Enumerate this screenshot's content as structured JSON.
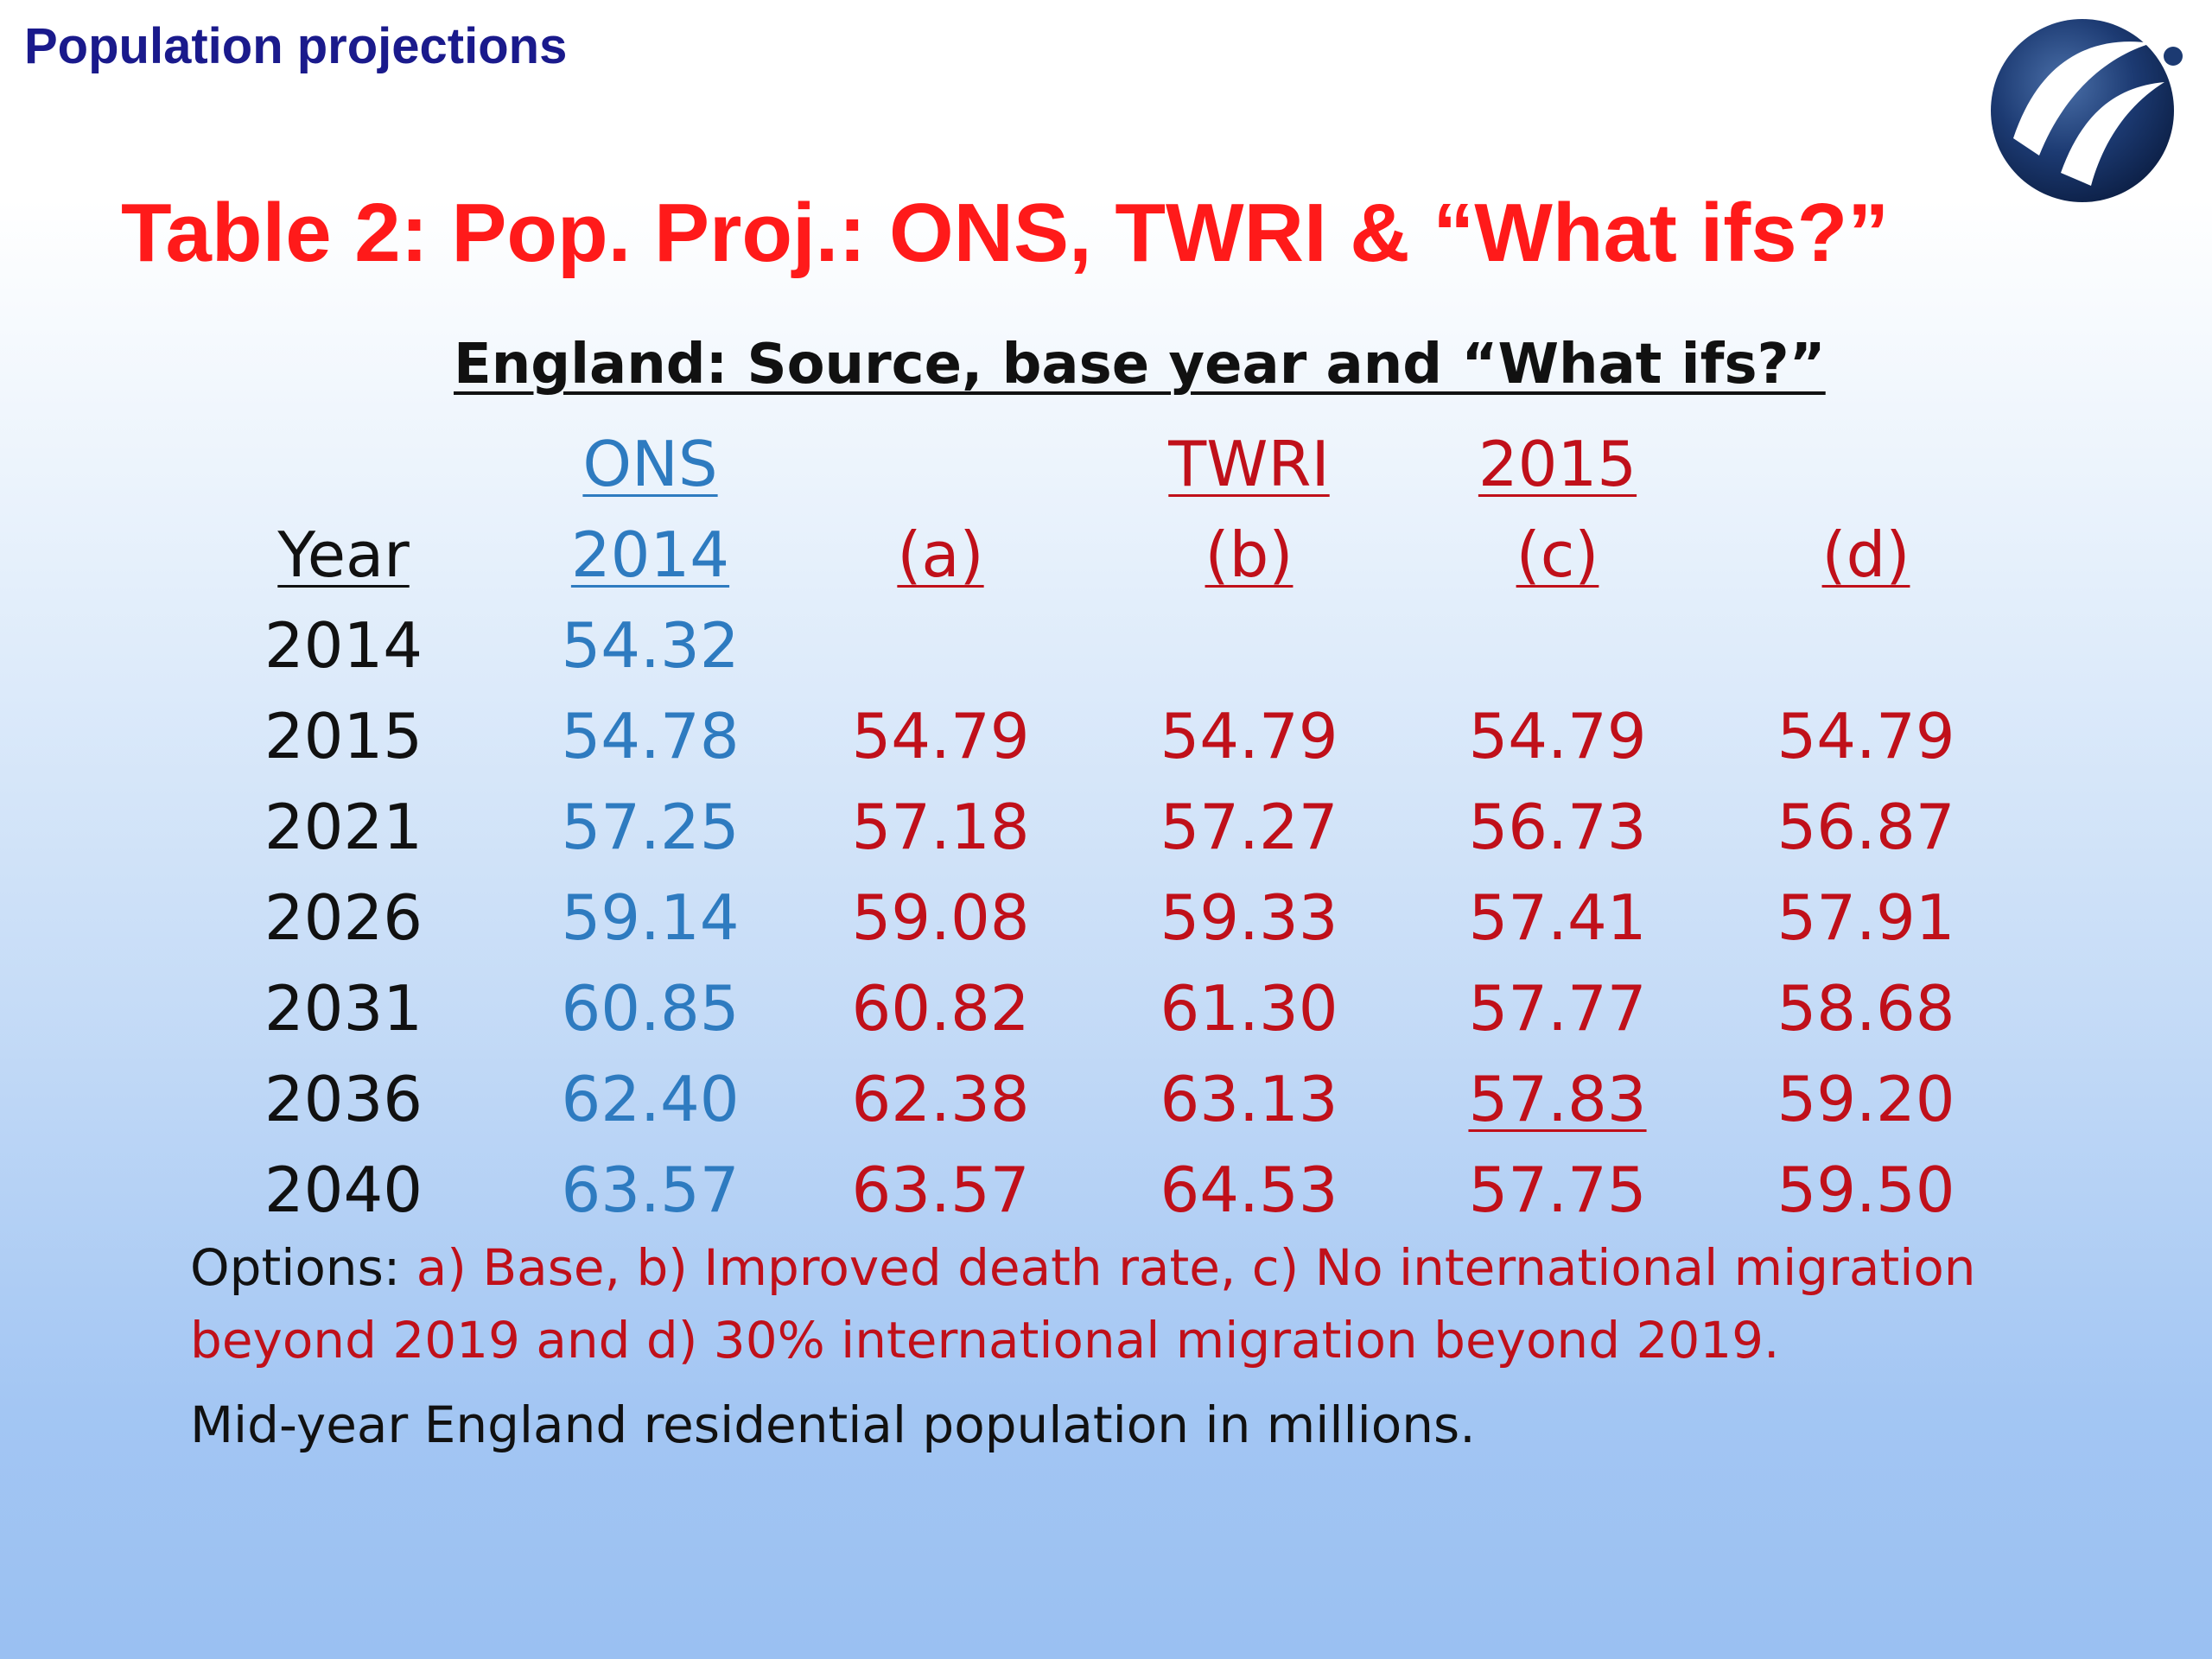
{
  "header": {
    "title": "Population projections"
  },
  "main_title": "Table 2: Pop. Proj.: ONS, TWRI & “What ifs?”",
  "subtitle": "England: Source, base year and “What ifs?”",
  "table": {
    "group_headers": {
      "ons": "ONS",
      "twri": "TWRI",
      "year2015": "2015"
    },
    "column_headers": [
      "Year",
      "2014",
      "(a)",
      "(b)",
      "(c)",
      "(d)"
    ],
    "rows": [
      [
        "2014",
        "54.32",
        "",
        "",
        "",
        ""
      ],
      [
        "2015",
        "54.78",
        "54.79",
        "54.79",
        "54.79",
        "54.79"
      ],
      [
        "2021",
        "57.25",
        "57.18",
        "57.27",
        "56.73",
        "56.87"
      ],
      [
        "2026",
        "59.14",
        "59.08",
        "59.33",
        "57.41",
        "57.91"
      ],
      [
        "2031",
        "60.85",
        "60.82",
        "61.30",
        "57.77",
        "58.68"
      ],
      [
        "2036",
        "62.40",
        "62.38",
        "63.13",
        "57.83",
        "59.20"
      ],
      [
        "2040",
        "63.57",
        "63.57",
        "64.53",
        "57.75",
        "59.50"
      ]
    ]
  },
  "options": {
    "label": "Options: ",
    "text": "a) Base, b) Improved death rate, c) No international migration beyond 2019 and d) 30% international migration beyond 2019."
  },
  "footnote": "Mid-year England residential population in millions.",
  "colors": {
    "header_blue": "#1a1a8c",
    "title_red": "#ff1a1a",
    "ons_blue": "#2e7bc0",
    "option_red": "#c0101a"
  },
  "icons": {
    "logo": "globe-logo-icon"
  }
}
